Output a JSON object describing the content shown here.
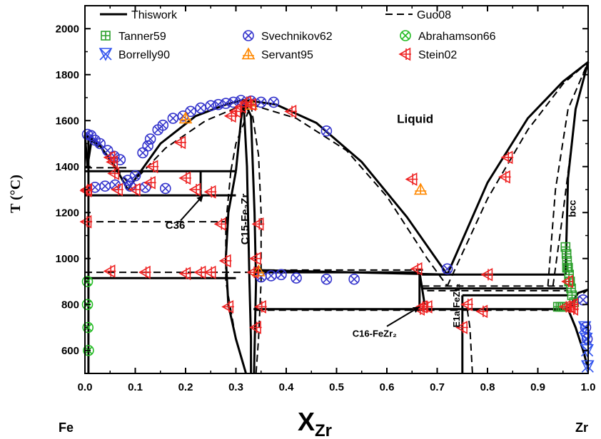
{
  "chart_data": {
    "type": "phase-diagram",
    "xlabel_main": "X",
    "xlabel_sub": "Zr",
    "ylabel": "T (°C)",
    "left_label": "Fe",
    "right_label": "Zr",
    "xlim": [
      0,
      1
    ],
    "ylim": [
      500,
      2100
    ],
    "xticks": [
      "0.0",
      "0.1",
      "0.2",
      "0.3",
      "0.4",
      "0.5",
      "0.6",
      "0.7",
      "0.8",
      "0.9",
      "1.0"
    ],
    "xtick_values": [
      0,
      0.1,
      0.2,
      0.3,
      0.4,
      0.5,
      0.6,
      0.7,
      0.8,
      0.9,
      1.0
    ],
    "yticks": [
      "600",
      "800",
      "1000",
      "1200",
      "1400",
      "1600",
      "1800",
      "2000"
    ],
    "ytick_values": [
      600,
      800,
      1000,
      1200,
      1400,
      1600,
      1800,
      2000
    ],
    "legend": [
      {
        "name": "Thiswork",
        "marker": "line-solid",
        "color": "#000000"
      },
      {
        "name": "Guo08",
        "marker": "line-dashed",
        "color": "#000000"
      },
      {
        "name": "Tanner59",
        "marker": "square-plus",
        "color": "#2ca02c"
      },
      {
        "name": "Svechnikov62",
        "marker": "circle-x",
        "color": "#3333cc"
      },
      {
        "name": "Abrahamson66",
        "marker": "circle-x",
        "color": "#22bb22"
      },
      {
        "name": "Borrelly90",
        "marker": "triangle-down-x",
        "color": "#3355ee"
      },
      {
        "name": "Servant95",
        "marker": "triangle-up-plus",
        "color": "#ff8800"
      },
      {
        "name": "Stein02",
        "marker": "triangle-left-plus",
        "color": "#ee2222"
      }
    ],
    "annotations": [
      {
        "text": "Liquid",
        "x": 0.62,
        "y": 1590
      },
      {
        "text": "bcc",
        "x": 0.975,
        "y": 1180
      },
      {
        "text": "C36",
        "x": 0.16,
        "y": 1130
      },
      {
        "text": "C15-Fe₂Zr",
        "x": 0.325,
        "y": 1060
      },
      {
        "text": "C16-FeZr₂",
        "x": 0.56,
        "y": 660
      },
      {
        "text": "E1a-FeZr₃",
        "x": 0.745,
        "y": 700
      }
    ],
    "series": [
      {
        "name": "Tanner59",
        "x": [
          0.955,
          0.957,
          0.958,
          0.96,
          0.962,
          0.964,
          0.958,
          0.962,
          0.966,
          0.968,
          0.972,
          0.94,
          0.945,
          0.95
        ],
        "y": [
          1050,
          1020,
          990,
          960,
          930,
          900,
          960,
          900,
          870,
          840,
          810,
          790,
          790,
          790
        ]
      },
      {
        "name": "Svechnikov62",
        "x": [
          0.005,
          0.012,
          0.02,
          0.03,
          0.045,
          0.058,
          0.07,
          0.085,
          0.1,
          0.115,
          0.125,
          0.13,
          0.145,
          0.155,
          0.175,
          0.195,
          0.21,
          0.23,
          0.25,
          0.265,
          0.28,
          0.295,
          0.31,
          0.33,
          0.35,
          0.375,
          0.48,
          0.02,
          0.04,
          0.06,
          0.09,
          0.12,
          0.16,
          0.35,
          0.37,
          0.39,
          0.42,
          0.48,
          0.535,
          0.72,
          0.99,
          0.995,
          0.998
        ],
        "y": [
          1540,
          1535,
          1515,
          1500,
          1470,
          1445,
          1430,
          1340,
          1360,
          1460,
          1490,
          1520,
          1560,
          1580,
          1610,
          1620,
          1640,
          1655,
          1665,
          1670,
          1675,
          1680,
          1688,
          1685,
          1680,
          1680,
          1555,
          1310,
          1315,
          1320,
          1315,
          1310,
          1305,
          920,
          925,
          930,
          915,
          910,
          910,
          955,
          820,
          700,
          650
        ]
      },
      {
        "name": "Abrahamson66",
        "x": [
          0.005,
          0.005,
          0.006,
          0.007
        ],
        "y": [
          900,
          800,
          700,
          600
        ]
      },
      {
        "name": "Borrelly90",
        "x": [
          0.993,
          0.996,
          0.998,
          0.999
        ],
        "y": [
          700,
          650,
          600,
          530
        ]
      },
      {
        "name": "Servant95",
        "x": [
          0.2,
          0.33,
          0.345,
          0.667
        ],
        "y": [
          1610,
          1670,
          945,
          1300
        ]
      },
      {
        "name": "Stein02",
        "x": [
          0.003,
          0.003,
          0.004,
          0.05,
          0.055,
          0.058,
          0.065,
          0.1,
          0.13,
          0.135,
          0.19,
          0.2,
          0.22,
          0.25,
          0.27,
          0.28,
          0.285,
          0.29,
          0.3,
          0.31,
          0.32,
          0.33,
          0.34,
          0.345,
          0.35,
          0.34,
          0.335,
          0.41,
          0.05,
          0.12,
          0.2,
          0.23,
          0.25,
          0.65,
          0.66,
          0.665,
          0.67,
          0.68,
          0.75,
          0.76,
          0.79,
          0.8,
          0.84,
          0.835,
          0.96,
          0.965,
          0.955,
          0.97,
          0.97
        ],
        "y": [
          1160,
          1295,
          1300,
          1440,
          1420,
          1370,
          1300,
          1300,
          1330,
          1400,
          1505,
          1350,
          1300,
          1290,
          1150,
          990,
          790,
          1620,
          1640,
          1660,
          1680,
          1670,
          1000,
          1150,
          790,
          700,
          940,
          1640,
          945,
          940,
          935,
          940,
          940,
          1345,
          955,
          780,
          790,
          790,
          700,
          800,
          770,
          930,
          1440,
          1355,
          900,
          790,
          790,
          780,
          800
        ]
      }
    ]
  }
}
